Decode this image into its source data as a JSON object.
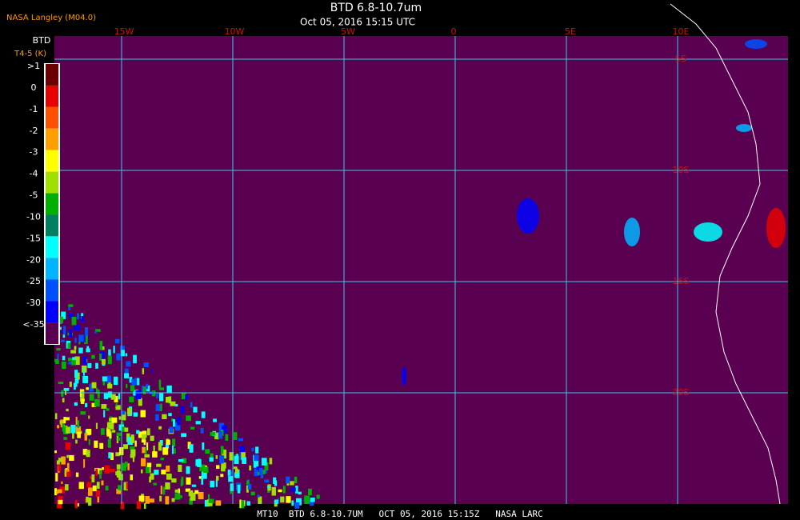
{
  "header": {
    "source": "NASA Langley (M04.0)",
    "title": "BTD 6.8-10.7um",
    "subtitle": "Oct 05, 2016 15:15 UTC"
  },
  "colorbar": {
    "title": "BTD",
    "unit": "T4-5 (K)",
    "labels": [
      ">1",
      "0",
      "-1",
      "-2",
      "-3",
      "-4",
      "-5",
      "-10",
      "-15",
      "-20",
      "-25",
      "-30",
      "<-35"
    ]
  },
  "grid": {
    "lon_labels": [
      "15W",
      "10W",
      "5W",
      "0",
      "5E",
      "10E"
    ],
    "lat_labels": [
      "5S",
      "10S",
      "15S",
      "20S"
    ]
  },
  "footer": {
    "text": "MT10  BTD 6.8-10.7UM   OCT 05, 2016 15:15Z   NASA LARC"
  }
}
